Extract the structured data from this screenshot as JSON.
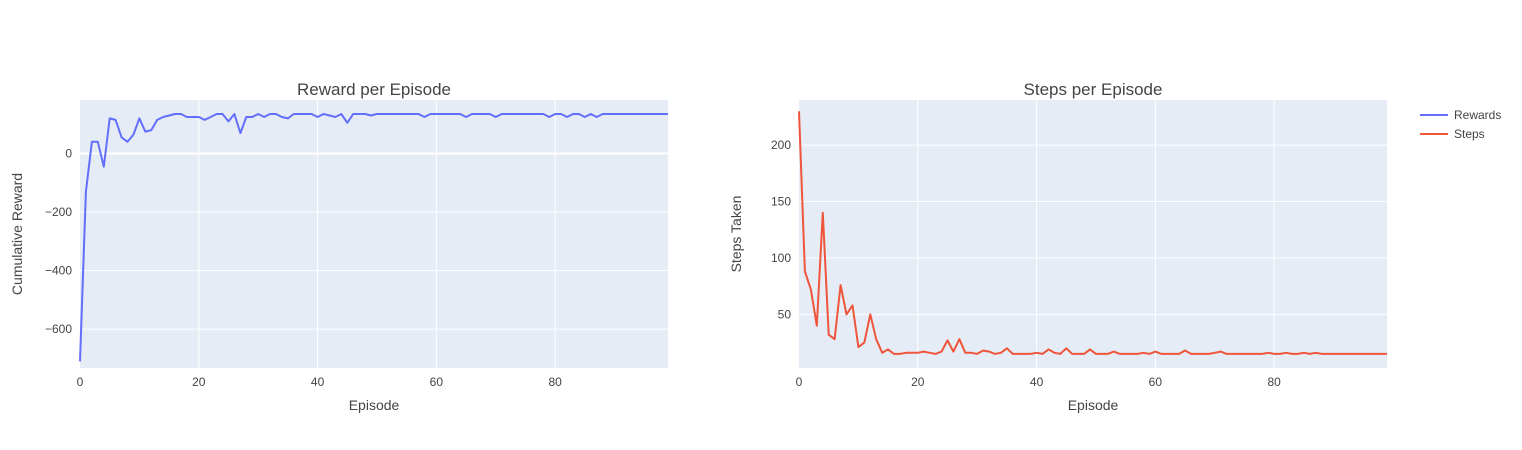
{
  "chart_data": [
    {
      "type": "line",
      "title": "Reward per Episode",
      "xlabel": "Episode",
      "ylabel": "Cumulative Reward",
      "xlim": [
        0,
        99
      ],
      "ylim": [
        -733,
        183
      ],
      "xticks": [
        0,
        20,
        40,
        60,
        80
      ],
      "yticks": [
        -600,
        -400,
        -200,
        0
      ],
      "ytick_labels": [
        "−600",
        "−400",
        "−200",
        "0"
      ],
      "grid": true,
      "series": [
        {
          "name": "Rewards",
          "color": "#636efa",
          "x": [
            0,
            1,
            2,
            3,
            4,
            5,
            6,
            7,
            8,
            9,
            10,
            11,
            12,
            13,
            14,
            15,
            16,
            17,
            18,
            19,
            20,
            21,
            22,
            23,
            24,
            25,
            26,
            27,
            28,
            29,
            30,
            31,
            32,
            33,
            34,
            35,
            36,
            37,
            38,
            39,
            40,
            41,
            42,
            43,
            44,
            45,
            46,
            47,
            48,
            49,
            50,
            51,
            52,
            53,
            54,
            55,
            56,
            57,
            58,
            59,
            60,
            61,
            62,
            63,
            64,
            65,
            66,
            67,
            68,
            69,
            70,
            71,
            72,
            73,
            74,
            75,
            76,
            77,
            78,
            79,
            80,
            81,
            82,
            83,
            84,
            85,
            86,
            87,
            88,
            89,
            90,
            91,
            92,
            93,
            94,
            95,
            96,
            97,
            98,
            99
          ],
          "values": [
            -710,
            -130,
            40,
            40,
            -45,
            120,
            115,
            55,
            40,
            65,
            120,
            75,
            80,
            115,
            125,
            130,
            135,
            135,
            125,
            125,
            125,
            115,
            125,
            135,
            135,
            110,
            135,
            70,
            125,
            125,
            135,
            125,
            135,
            135,
            125,
            120,
            135,
            135,
            135,
            135,
            125,
            135,
            130,
            125,
            135,
            105,
            135,
            135,
            135,
            130,
            135,
            135,
            135,
            135,
            135,
            135,
            135,
            135,
            125,
            135,
            135,
            135,
            135,
            135,
            135,
            125,
            135,
            135,
            135,
            135,
            125,
            135,
            135,
            135,
            135,
            135,
            135,
            135,
            135,
            125,
            135,
            135,
            125,
            135,
            135,
            125,
            135,
            125,
            135,
            135,
            135,
            135,
            135,
            135,
            135,
            135,
            135,
            135,
            135,
            135
          ]
        }
      ]
    },
    {
      "type": "line",
      "title": "Steps per Episode",
      "xlabel": "Episode",
      "ylabel": "Steps Taken",
      "xlim": [
        0,
        99
      ],
      "ylim": [
        2.5,
        240
      ],
      "xticks": [
        0,
        20,
        40,
        60,
        80
      ],
      "yticks": [
        50,
        100,
        150,
        200
      ],
      "grid": true,
      "series": [
        {
          "name": "Steps",
          "color": "#ef553b",
          "x": [
            0,
            1,
            2,
            3,
            4,
            5,
            6,
            7,
            8,
            9,
            10,
            11,
            12,
            13,
            14,
            15,
            16,
            17,
            18,
            19,
            20,
            21,
            22,
            23,
            24,
            25,
            26,
            27,
            28,
            29,
            30,
            31,
            32,
            33,
            34,
            35,
            36,
            37,
            38,
            39,
            40,
            41,
            42,
            43,
            44,
            45,
            46,
            47,
            48,
            49,
            50,
            51,
            52,
            53,
            54,
            55,
            56,
            57,
            58,
            59,
            60,
            61,
            62,
            63,
            64,
            65,
            66,
            67,
            68,
            69,
            70,
            71,
            72,
            73,
            74,
            75,
            76,
            77,
            78,
            79,
            80,
            81,
            82,
            83,
            84,
            85,
            86,
            87,
            88,
            89,
            90,
            91,
            92,
            93,
            94,
            95,
            96,
            97,
            98,
            99
          ],
          "values": [
            230,
            88,
            72,
            40,
            140,
            32,
            28,
            76,
            50,
            58,
            21,
            25,
            50,
            28,
            16,
            19,
            15,
            15,
            16,
            16,
            16,
            17,
            16,
            15,
            17,
            27,
            17,
            28,
            16,
            16,
            15,
            18,
            17,
            15,
            16,
            20,
            15,
            15,
            15,
            15,
            16,
            15,
            19,
            16,
            15,
            20,
            15,
            15,
            15,
            19,
            15,
            15,
            15,
            17,
            15,
            15,
            15,
            15,
            16,
            15,
            17,
            15,
            15,
            15,
            15,
            18,
            15,
            15,
            15,
            15,
            16,
            17,
            15,
            15,
            15,
            15,
            15,
            15,
            15,
            16,
            15,
            15,
            16,
            15,
            15,
            16,
            15,
            16,
            15,
            15,
            15,
            15,
            15,
            15,
            15,
            15,
            15,
            15,
            15,
            15
          ]
        }
      ]
    }
  ],
  "legend": {
    "position": "top-right",
    "items": [
      {
        "name": "Rewards",
        "color": "#636efa"
      },
      {
        "name": "Steps",
        "color": "#ef553b"
      }
    ]
  },
  "style": {
    "plot_bg": "#e5ecf6",
    "grid_color": "#ffffff",
    "text_color": "#444444"
  }
}
